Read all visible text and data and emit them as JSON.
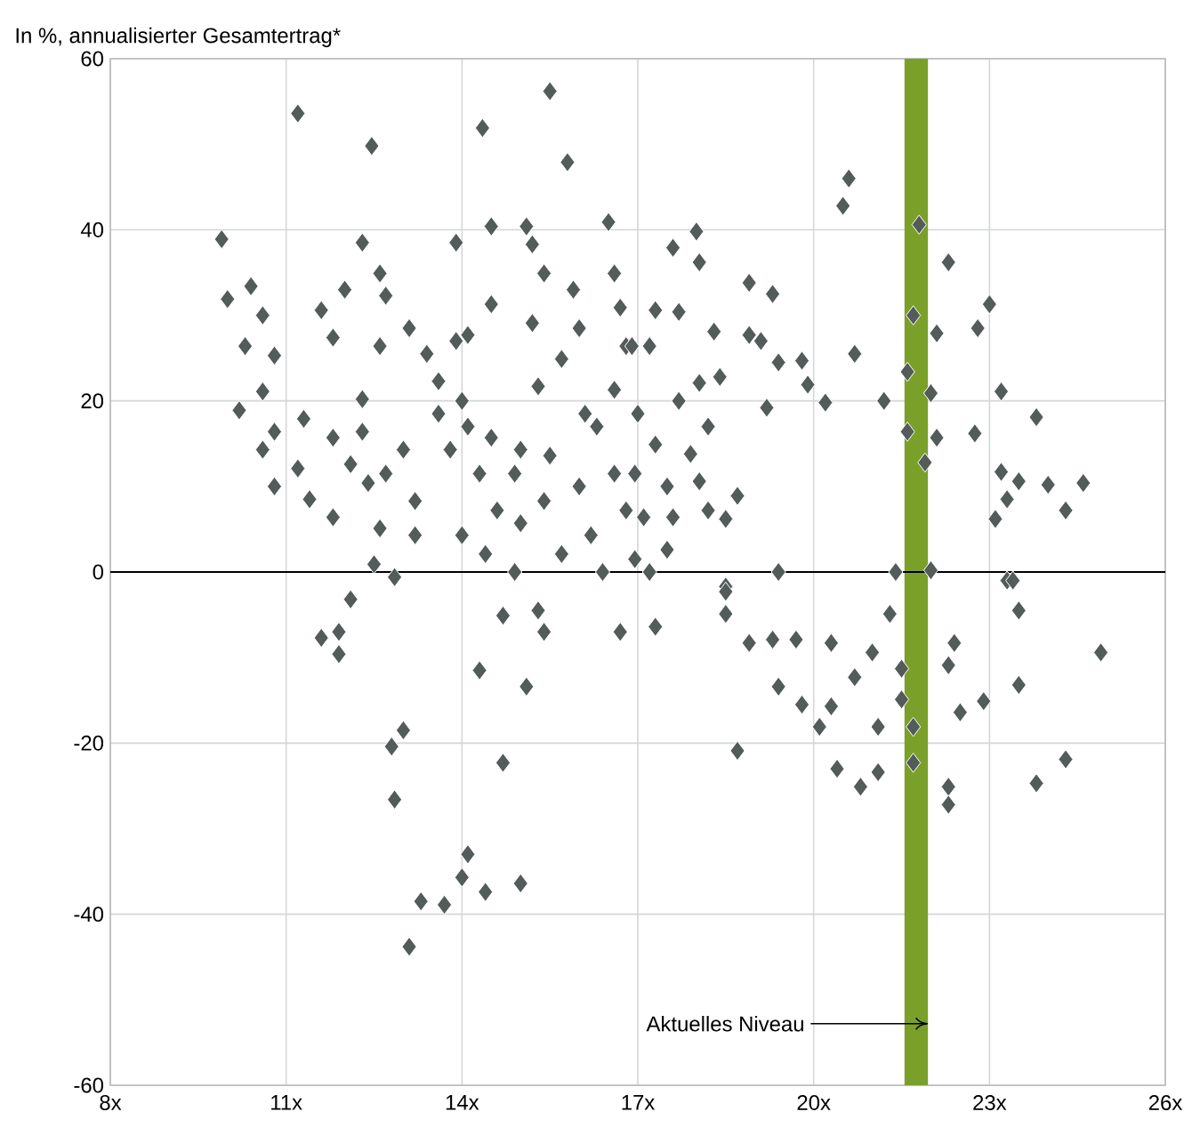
{
  "chart_data": {
    "type": "scatter",
    "subtitle": "In %, annualisierter Gesamtertrag*",
    "xlim": [
      8,
      26
    ],
    "ylim": [
      -60,
      60
    ],
    "xticks": [
      {
        "value": 8,
        "label": "8x"
      },
      {
        "value": 11,
        "label": "11x"
      },
      {
        "value": 14,
        "label": "14x"
      },
      {
        "value": 17,
        "label": "17x"
      },
      {
        "value": 20,
        "label": "20x"
      },
      {
        "value": 23,
        "label": "23x"
      },
      {
        "value": 26,
        "label": "26x"
      }
    ],
    "yticks": [
      -60,
      -40,
      -20,
      0,
      20,
      40,
      60
    ],
    "grid": true,
    "marker": "diamond",
    "ref_lines": [
      {
        "axis": "y",
        "value": 0,
        "color": "#000000"
      }
    ],
    "bands": [
      {
        "axis": "x",
        "from": 21.55,
        "to": 21.95,
        "label": "Aktuelles Niveau",
        "color": "#7ba02a"
      }
    ],
    "series": [
      {
        "color": "#545b5b",
        "x": [
          11.2,
          12.46,
          14.35,
          15.5,
          15.8,
          9.9,
          12.3,
          13.9,
          14.5,
          15.1,
          16.5,
          20.6,
          20.5,
          21.8,
          22.3,
          23.0,
          22.8,
          21.7,
          22.1,
          20.7,
          21.6,
          22.0,
          21.2,
          23.2,
          23.8,
          21.6,
          22.1,
          21.9,
          22.75,
          23.2,
          23.5,
          24.0,
          24.6,
          23.3,
          24.3,
          23.1,
          21.4,
          22.0,
          23.3,
          18.9,
          19.3,
          17.6,
          18.0,
          18.05,
          19.8,
          19.9,
          20.2,
          19.2,
          19.4,
          18.5,
          18.7,
          18.5,
          24.9,
          24.3,
          23.8,
          23.4,
          23.5,
          23.5,
          22.4,
          22.3,
          22.5,
          22.9,
          22.3,
          22.3,
          21.7,
          21.7,
          21.5,
          21.5,
          21.3,
          21.1,
          21.0,
          20.7,
          21.1,
          20.8,
          20.4,
          20.3,
          20.1,
          19.8,
          20.3,
          19.7,
          19.3,
          18.9,
          19.4,
          18.7,
          18.5,
          18.5,
          17.3,
          16.7,
          15.4,
          15.3,
          14.7,
          15.1,
          14.3,
          14.7,
          15.0,
          14.1,
          14.0,
          14.4,
          13.7,
          13.3,
          13.1,
          13.0,
          12.8,
          12.85,
          11.9,
          11.6,
          11.9,
          12.1,
          12.85,
          10.0,
          10.4,
          10.6,
          10.3,
          10.8,
          10.2,
          10.6,
          10.8,
          10.6,
          10.8,
          11.4,
          11.8,
          11.2,
          11.3,
          11.8,
          11.6,
          12.0,
          11.8,
          12.6,
          12.7,
          13.1,
          12.3,
          12.3,
          12.1,
          12.4,
          12.6,
          12.5,
          13.2,
          13.2,
          12.6,
          13.4,
          13.9,
          14.1,
          14.5,
          15.2,
          15.2,
          15.4,
          15.9,
          16.6,
          16.7,
          16.0,
          15.7,
          15.3,
          13.6,
          14.0,
          13.6,
          14.1,
          14.5,
          15.0,
          15.5,
          14.9,
          14.3,
          13.8,
          13.0,
          12.7,
          14.6,
          15.0,
          15.4,
          16.0,
          16.2,
          15.7,
          14.9,
          14.4,
          14.0,
          16.3,
          16.6,
          16.8,
          16.1,
          16.6,
          16.8,
          16.4,
          17.3,
          17.7,
          18.3,
          18.9,
          19.1,
          19.4,
          16.9,
          17.2,
          18.05,
          18.4,
          17.7,
          18.2,
          17.0,
          17.3,
          17.9,
          16.95,
          17.5,
          18.05,
          17.1,
          17.6,
          18.2,
          17.5,
          16.95,
          17.2
        ],
        "values": [
          53.6,
          49.8,
          51.9,
          56.2,
          47.9,
          38.9,
          38.5,
          38.5,
          40.4,
          40.4,
          40.9,
          46,
          42.8,
          40.6,
          36.2,
          31.3,
          28.5,
          30,
          27.9,
          25.5,
          23.4,
          20.9,
          20,
          21.1,
          18.1,
          16.4,
          15.7,
          12.8,
          16.2,
          11.7,
          10.6,
          10.2,
          10.4,
          8.5,
          7.2,
          6.2,
          0,
          0.2,
          -1,
          33.8,
          32.5,
          37.9,
          39.8,
          36.2,
          24.7,
          21.9,
          19.8,
          19.2,
          0,
          -1.7,
          8.9,
          6.2,
          -9.4,
          -21.9,
          -24.7,
          -1,
          -4.5,
          -13.2,
          -8.3,
          -10.9,
          -16.4,
          -15.1,
          -25.1,
          -27.2,
          -22.3,
          -18.1,
          -14.9,
          -11.3,
          -4.9,
          -18.1,
          -9.4,
          -12.3,
          -23.4,
          -25.1,
          -23,
          -15.7,
          -18.1,
          -15.5,
          -8.3,
          -7.9,
          -7.9,
          -8.3,
          -13.4,
          -20.9,
          -2.3,
          -4.9,
          -6.4,
          -7,
          -7,
          -4.5,
          -5.1,
          -13.4,
          -11.5,
          -22.3,
          -36.4,
          -33,
          -35.7,
          -37.4,
          -38.9,
          -38.5,
          -43.8,
          -18.5,
          -20.4,
          -26.6,
          -9.6,
          -7.7,
          -7,
          -3.2,
          -0.6,
          31.9,
          33.4,
          30,
          26.4,
          25.3,
          18.9,
          21.1,
          16.4,
          14.3,
          10,
          8.5,
          6.4,
          12.1,
          17.9,
          15.7,
          30.6,
          33,
          27.4,
          34.9,
          32.3,
          28.5,
          20.2,
          16.4,
          12.6,
          10.4,
          5.1,
          0.9,
          8.3,
          4.3,
          26.4,
          25.5,
          27,
          27.7,
          31.3,
          29.1,
          38.3,
          34.9,
          33,
          34.9,
          30.9,
          28.5,
          24.9,
          21.7,
          22.3,
          20,
          18.5,
          17,
          15.7,
          14.3,
          13.6,
          11.5,
          11.5,
          14.3,
          14.3,
          11.5,
          7.2,
          5.7,
          8.3,
          10,
          4.3,
          2.1,
          0,
          2.1,
          4.3,
          17,
          21.3,
          26.4,
          18.5,
          11.5,
          7.2,
          0,
          30.6,
          30.4,
          28.1,
          27.7,
          27,
          24.5,
          26.4,
          26.4,
          22.1,
          22.8,
          20,
          17,
          18.5,
          14.9,
          13.8,
          11.5,
          10,
          10.6,
          6.4,
          6.4,
          7.2,
          2.6,
          1.5,
          0
        ]
      }
    ]
  }
}
